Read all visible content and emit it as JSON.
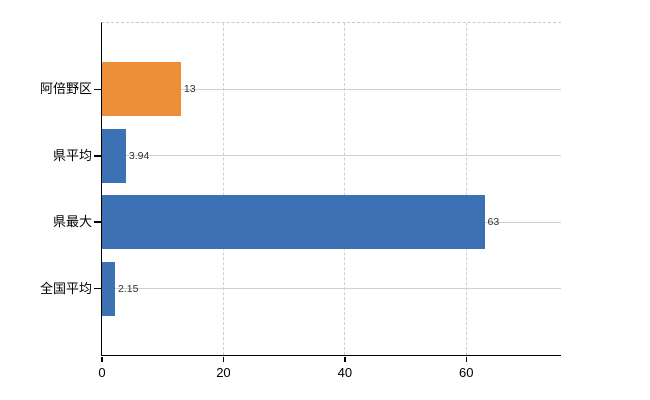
{
  "colors": {
    "bar_blue": "#3C72B4",
    "bar_orange": "#EC8E38",
    "axis": "#000000",
    "gridline": "#ccd3cc",
    "value_label": "#333333"
  },
  "chart_data": {
    "type": "bar",
    "orientation": "horizontal",
    "title": "",
    "xlabel": "",
    "ylabel": "",
    "categories": [
      "阿倍野区",
      "県平均",
      "県最大",
      "全国平均"
    ],
    "values": [
      13,
      3.94,
      63,
      2.15
    ],
    "value_labels": [
      "13",
      "3.94",
      "63",
      "2.15"
    ],
    "bar_colors": [
      "#EC8E38",
      "#3C72B4",
      "#3C72B4",
      "#3C72B4"
    ],
    "xlim": [
      0,
      75.6
    ],
    "xticks": [
      0,
      20,
      40,
      60
    ],
    "xtick_labels": [
      "0",
      "20",
      "40",
      "60"
    ],
    "grid": true,
    "grid_vertical_style": "dashed",
    "grid_horizontal_style": "solid",
    "legend": false
  }
}
